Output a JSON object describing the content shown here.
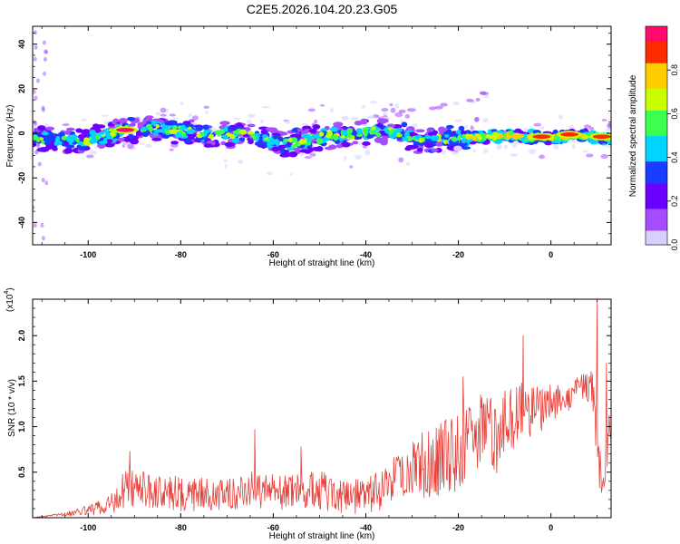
{
  "title": "C2E5.2026.104.20.23.G05",
  "colors": {
    "line": "#e8403a",
    "frame": "#000000",
    "colormap": [
      "#d7d0ff",
      "#a54dff",
      "#6a00ff",
      "#1a3dff",
      "#00d4ff",
      "#3cff50",
      "#c8ff00",
      "#ffcc00",
      "#ff2a00",
      "#ff0a6e"
    ]
  },
  "chart_data": [
    {
      "type": "heatmap",
      "xlabel": "Height of straight line (km)",
      "ylabel": "Frequency (Hz)",
      "xlim": [
        -112,
        13
      ],
      "ylim": [
        -50,
        48
      ],
      "xticks": [
        -100,
        -80,
        -60,
        -40,
        -20,
        0
      ],
      "xtick_labels": [
        "-100",
        "-80",
        "-60",
        "-40",
        "-20",
        "0"
      ],
      "yticks": [
        -40,
        -20,
        0,
        20,
        40
      ],
      "ytick_labels": [
        "-40",
        "-20",
        "0",
        "20",
        "40"
      ],
      "ridge": {
        "x": [
          -112,
          -100,
          -93,
          -85,
          -75,
          -65,
          -58,
          -50,
          -42,
          -35,
          -28,
          -22,
          -18,
          -10,
          0,
          5,
          13
        ],
        "freq": [
          -3,
          -3,
          1,
          2,
          0,
          -1,
          -5,
          -2,
          0,
          1,
          -4,
          -2,
          -2,
          -1,
          -2,
          -1,
          -2
        ]
      },
      "hotspots": [
        {
          "x": -92,
          "freq": 1.5,
          "amp": 0.95
        },
        {
          "x": -2,
          "freq": -1.5,
          "amp": 0.9
        },
        {
          "x": 4,
          "freq": -0.5,
          "amp": 0.9
        },
        {
          "x": 11,
          "freq": -1.5,
          "amp": 0.85
        }
      ],
      "colorbar": {
        "label": "Normalized spectral amplitude",
        "range": [
          0,
          1
        ],
        "ticks": [
          0.0,
          0.2,
          0.4,
          0.6,
          0.8
        ],
        "tick_labels": [
          "0.0",
          "0.2",
          "0.4",
          "0.6",
          "0.8"
        ]
      }
    },
    {
      "type": "line",
      "xlabel": "Height of straight line (km)",
      "ylabel": "SNR (10 * v/v)",
      "yscale_label": "(x10",
      "yscale_exp": "4",
      "yscale_close": ")",
      "xlim": [
        -112,
        13
      ],
      "ylim": [
        0,
        2.4
      ],
      "xticks": [
        -100,
        -80,
        -60,
        -40,
        -20,
        0
      ],
      "xtick_labels": [
        "-100",
        "-80",
        "-60",
        "-40",
        "-20",
        "0"
      ],
      "yticks": [
        0.5,
        1.0,
        1.5,
        2.0
      ],
      "ytick_labels": [
        "0.5",
        "1.0",
        "1.5",
        "2.0"
      ],
      "envelope": {
        "x": [
          -112,
          -105,
          -98,
          -95,
          -93,
          -90,
          -85,
          -80,
          -75,
          -70,
          -65,
          -60,
          -55,
          -50,
          -45,
          -40,
          -35,
          -30,
          -27,
          -25,
          -22,
          -20,
          -18,
          -15,
          -12,
          -10,
          -8,
          -6,
          -4,
          -2,
          0,
          3,
          5,
          7,
          9,
          10,
          11,
          12,
          13
        ],
        "base": [
          0.0,
          0.04,
          0.1,
          0.15,
          0.3,
          0.33,
          0.28,
          0.26,
          0.26,
          0.25,
          0.32,
          0.28,
          0.3,
          0.3,
          0.22,
          0.24,
          0.35,
          0.55,
          0.6,
          0.6,
          0.7,
          0.7,
          0.85,
          0.95,
          0.9,
          1.0,
          1.1,
          1.2,
          1.15,
          1.2,
          1.3,
          1.25,
          1.4,
          1.45,
          1.45,
          0.8,
          0.3,
          0.8,
          1.0
        ],
        "noise": [
          0.0,
          0.02,
          0.08,
          0.12,
          0.22,
          0.2,
          0.2,
          0.2,
          0.18,
          0.18,
          0.2,
          0.2,
          0.2,
          0.22,
          0.18,
          0.2,
          0.25,
          0.35,
          0.38,
          0.4,
          0.42,
          0.45,
          0.45,
          0.5,
          0.45,
          0.4,
          0.35,
          0.3,
          0.3,
          0.25,
          0.2,
          0.18,
          0.15,
          0.15,
          0.2,
          0.3,
          0.25,
          0.3,
          0.2
        ]
      },
      "peaks": [
        {
          "x": -91,
          "y": 0.73
        },
        {
          "x": -64,
          "y": 0.97
        },
        {
          "x": -54,
          "y": 0.78
        },
        {
          "x": -19,
          "y": 1.55
        },
        {
          "x": -6,
          "y": 2.0
        },
        {
          "x": 10,
          "y": 2.4
        },
        {
          "x": 12,
          "y": 1.7
        }
      ]
    }
  ]
}
